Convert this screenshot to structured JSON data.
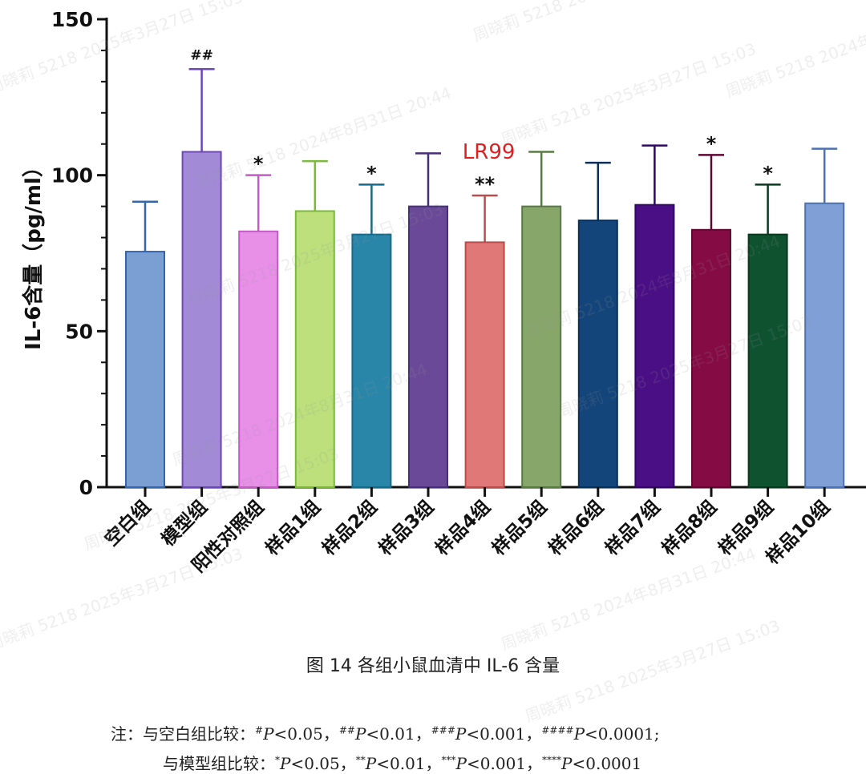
{
  "chart_data": {
    "type": "bar",
    "ylabel": "IL-6含量（pg/ml）",
    "ylim": [
      0,
      150
    ],
    "yticks": [
      0,
      50,
      100,
      150
    ],
    "categories": [
      "空白组",
      "模型组",
      "阳性对照组",
      "样品1组",
      "样品2组",
      "样品3组",
      "样品4组",
      "样品5组",
      "样品6组",
      "样品7组",
      "样品8组",
      "样品9组",
      "样品10组"
    ],
    "values": [
      75.5,
      107.5,
      82.0,
      88.5,
      81.0,
      90.0,
      78.5,
      90.0,
      85.5,
      90.5,
      82.5,
      81.0,
      91.0
    ],
    "errors": [
      16.0,
      26.5,
      18.0,
      16.0,
      16.0,
      17.0,
      15.0,
      17.5,
      18.5,
      19.0,
      24.0,
      16.0,
      17.5
    ],
    "significance": [
      "",
      "##",
      "*",
      "",
      "*",
      "",
      "**",
      "",
      "",
      "",
      "*",
      "*",
      ""
    ],
    "colors": [
      "#7b9fd3",
      "#a28ad6",
      "#e88fe8",
      "#bde07c",
      "#2a86a8",
      "#6a4a98",
      "#e07878",
      "#87a66a",
      "#14457a",
      "#4a0f84",
      "#850b45",
      "#0f5230",
      "#7f9fd6"
    ],
    "edge_colors": [
      "#3566ac",
      "#6d47b8",
      "#c45ac6",
      "#7bb93c",
      "#186a8a",
      "#47307a",
      "#b94c4c",
      "#5a7a45",
      "#0b2f57",
      "#2f0860",
      "#5e0732",
      "#0a3820",
      "#4b72b4"
    ],
    "annotation": "LR99",
    "annotation_color": "#e02020",
    "grid": false,
    "legend": "none"
  },
  "caption": "图 14 各组小鼠血清中 IL-6 含量",
  "note": {
    "line1_prefix": "注：与空白组比较：",
    "line1": [
      {
        "sup": "#",
        "p": "P",
        "val": "<0.05，"
      },
      {
        "sup": "##",
        "p": "P",
        "val": "<0.01，"
      },
      {
        "sup": "###",
        "p": "P",
        "val": "<0.001，"
      },
      {
        "sup": "####",
        "p": "P",
        "val": "<0.0001;"
      }
    ],
    "line2_prefix": "与模型组比较：",
    "line2": [
      {
        "sup": "*",
        "p": "P",
        "val": "<0.05，"
      },
      {
        "sup": "**",
        "p": "P",
        "val": "<0.01，"
      },
      {
        "sup": "***",
        "p": "P",
        "val": "<0.001，"
      },
      {
        "sup": "****",
        "p": "P",
        "val": "<0.0001"
      }
    ]
  },
  "watermarks": [
    "周晓莉 5218 2024年8月31日 20:44",
    "周晓莉 5218 2025年3月27日 15:03"
  ]
}
